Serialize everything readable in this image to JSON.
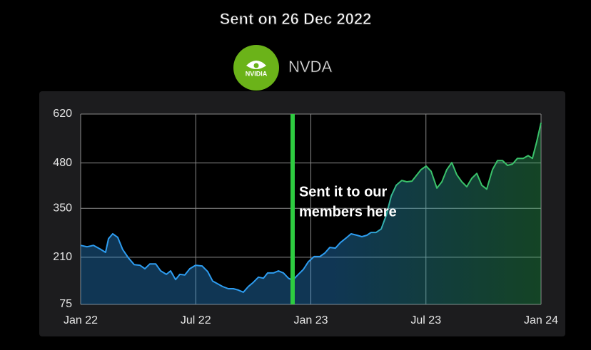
{
  "chart_data": {
    "type": "area",
    "title": "Sent on 26 Dec 2022",
    "subtitle": "NVDA",
    "logo": "NVIDIA",
    "annotation": [
      "Sent it to our",
      "members here"
    ],
    "marker_x": 11.05,
    "marker_color": "#2ecc40",
    "grid": true,
    "xlim": [
      0,
      24
    ],
    "xticks": [
      {
        "value": 0,
        "label": "Jan 22"
      },
      {
        "value": 6,
        "label": "Jul 22"
      },
      {
        "value": 12,
        "label": "Jan 23"
      },
      {
        "value": 18,
        "label": "Jul 23"
      },
      {
        "value": 24,
        "label": "Jan 24"
      }
    ],
    "ylim": [
      75,
      620
    ],
    "yticks": [
      620,
      480,
      350,
      210,
      75
    ],
    "series": [
      {
        "color": [
          "#2d9cf0",
          "#3ac26a"
        ],
        "x": [
          0,
          0.33,
          0.67,
          1.0,
          1.3,
          1.45,
          1.67,
          1.93,
          2.19,
          2.49,
          2.79,
          3.09,
          3.35,
          3.61,
          3.91,
          4.17,
          4.47,
          4.69,
          4.95,
          5.17,
          5.43,
          5.69,
          5.99,
          6.33,
          6.62,
          6.88,
          7.14,
          7.4,
          7.7,
          7.96,
          8.22,
          8.48,
          8.74,
          9.0,
          9.27,
          9.53,
          9.75,
          10.05,
          10.31,
          10.57,
          10.83,
          11.05,
          11.35,
          11.61,
          11.87,
          12.17,
          12.47,
          12.73,
          12.99,
          13.28,
          13.54,
          13.84,
          14.1,
          14.4,
          14.66,
          14.92,
          15.14,
          15.4,
          15.67,
          15.93,
          16.19,
          16.45,
          16.74,
          17.0,
          17.27,
          17.53,
          17.75,
          18.01,
          18.27,
          18.57,
          18.83,
          19.09,
          19.35,
          19.61,
          19.87,
          20.13,
          20.39,
          20.65,
          20.91,
          21.17,
          21.47,
          21.73,
          21.99,
          22.25,
          22.51,
          22.77,
          23.07,
          23.33,
          23.55,
          23.78,
          24.0
        ],
        "values": [
          244,
          240,
          244,
          234,
          224,
          263,
          277,
          267,
          232,
          208,
          189,
          187,
          177,
          191,
          191,
          171,
          161,
          171,
          146,
          161,
          159,
          177,
          187,
          185,
          169,
          142,
          134,
          126,
          120,
          120,
          116,
          110,
          126,
          138,
          153,
          150,
          165,
          165,
          171,
          165,
          150,
          144,
          161,
          175,
          197,
          212,
          212,
          222,
          238,
          236,
          252,
          265,
          277,
          273,
          269,
          273,
          281,
          281,
          291,
          330,
          385,
          416,
          430,
          426,
          428,
          446,
          461,
          471,
          456,
          408,
          426,
          461,
          481,
          446,
          426,
          412,
          436,
          450,
          416,
          405,
          461,
          487,
          487,
          473,
          477,
          493,
          493,
          501,
          493,
          542,
          595
        ]
      }
    ]
  }
}
